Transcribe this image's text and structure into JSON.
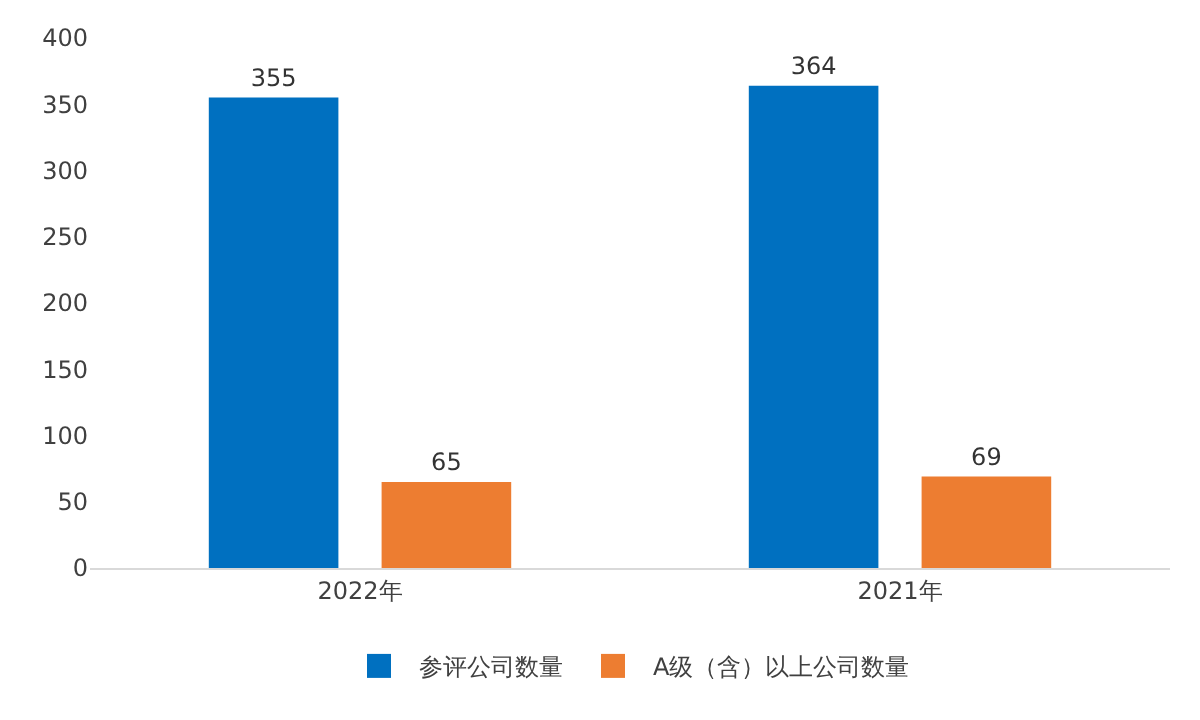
{
  "chart_data": {
    "type": "bar",
    "categories": [
      "2022年",
      "2021年"
    ],
    "series": [
      {
        "name": "参评公司数量",
        "color": "#0070c0",
        "values": [
          355,
          364
        ]
      },
      {
        "name": "A级（含）以上公司数量",
        "color": "#ed7d31",
        "values": [
          65,
          69
        ]
      }
    ],
    "ylim": [
      0,
      400
    ],
    "yticks": [
      0,
      50,
      100,
      150,
      200,
      250,
      300,
      350,
      400
    ],
    "grid": false,
    "legend": "bottom",
    "data_labels": true
  }
}
